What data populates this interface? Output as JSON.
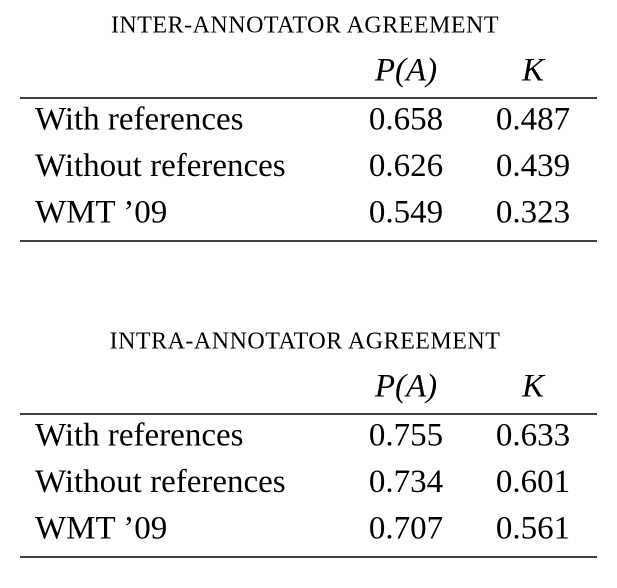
{
  "tables": [
    {
      "title": "INTER-ANNOTATOR AGREEMENT",
      "header": [
        "P(A)",
        "K"
      ],
      "rows": [
        [
          "With references",
          "0.658",
          "0.487"
        ],
        [
          "Without references",
          "0.626",
          "0.439"
        ],
        [
          "WMT ’09",
          "0.549",
          "0.323"
        ]
      ]
    },
    {
      "title": "INTRA-ANNOTATOR AGREEMENT",
      "header": [
        "P(A)",
        "K"
      ],
      "rows": [
        [
          "With references",
          "0.755",
          "0.633"
        ],
        [
          "Without references",
          "0.734",
          "0.601"
        ],
        [
          "WMT ’09",
          "0.707",
          "0.561"
        ]
      ]
    }
  ]
}
